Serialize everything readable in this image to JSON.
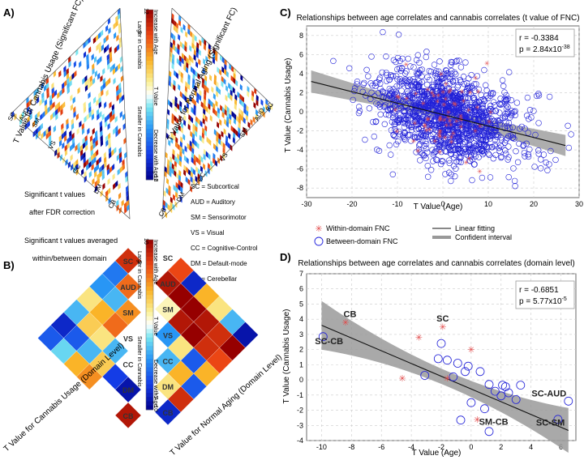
{
  "panels": {
    "a_label": "A)",
    "b_label": "B)",
    "c_label": "C)",
    "d_label": "D)"
  },
  "panel_a": {
    "left_axis_title": "T Value for Cannabis Usage (Significant FC)",
    "right_axis_title": "T Value for Normal Aging (Significant FC)",
    "left_domains": [
      "SC",
      "AUD",
      "SM",
      "VS",
      "CC",
      "DM",
      "CB"
    ],
    "right_domains": [
      "CB",
      "DM",
      "CC",
      "VS",
      "SM",
      "AUD",
      "SC"
    ],
    "note_line1": "Significant t values",
    "note_line2": "after FDR correction",
    "colorbar": {
      "max_label": "12",
      "min_label": "-12",
      "inc_label": "Increase with Age",
      "larger_label": "Larger in Cannabis",
      "mid_label": "T Value",
      "smaller_label": "Smaller in Cannabis",
      "dec_label": "Decrease with Age",
      "six_label": "6",
      "neg_six_label": "-6"
    }
  },
  "legend_domains": [
    "SC = Subcortical",
    "AUD = Auditory",
    "SM = Sensorimotor",
    "VS = Visual",
    "CC = Cognitive-Control",
    "DM = Default-mode",
    "CB = Cerebellar"
  ],
  "panel_b": {
    "note_line1": "Significant t values averaged",
    "note_line2": "within/between domain",
    "left_axis_title": "T Value for Cannabis Usage (Domain Level)",
    "right_axis_title": "T Value for Normal Aging (Domain Level)",
    "domains": [
      "SC",
      "AUD",
      "SM",
      "VS",
      "CC",
      "DM",
      "CB"
    ],
    "colorbar": {
      "max_label": "10",
      "min_label": "-10",
      "inc_label": "Increase with Age",
      "larger_label": "Larger in Cannabis",
      "mid_label": "T Value",
      "smaller_label": "Smaller in Cannabis",
      "dec_label": "Decrease with Age",
      "five_label": "5",
      "neg_five_label": "-5"
    },
    "cannabis_matrix": [
      [
        8,
        -5,
        -4,
        2,
        -3,
        -8,
        -6
      ],
      [
        -5,
        6,
        -3,
        4,
        3,
        -6,
        -2
      ],
      [
        -4,
        -3,
        5,
        6,
        2,
        -3,
        4
      ],
      [
        2,
        4,
        6,
        0,
        -3,
        3,
        5
      ],
      [
        -3,
        3,
        2,
        -3,
        0,
        -7,
        0
      ],
      [
        -8,
        -6,
        -3,
        3,
        -7,
        -9,
        0
      ],
      [
        -6,
        -2,
        4,
        5,
        0,
        0,
        9
      ]
    ],
    "aging_matrix": [
      [
        0,
        7,
        -8,
        4,
        2,
        -3,
        -9
      ],
      [
        7,
        9,
        10,
        10,
        9,
        8,
        10
      ],
      [
        -8,
        10,
        1,
        9,
        10,
        8,
        7
      ],
      [
        4,
        10,
        9,
        -4,
        2,
        -6,
        4
      ],
      [
        2,
        9,
        10,
        2,
        -3,
        4,
        -6
      ],
      [
        -3,
        8,
        8,
        -6,
        4,
        2,
        8
      ],
      [
        -9,
        10,
        7,
        4,
        -6,
        8,
        -8
      ]
    ]
  },
  "legend_c": {
    "within": "Within-domain FNC",
    "between": "Between-domain FNC",
    "linear": "Linear fitting",
    "ci": "Confident interval"
  },
  "chart_data": [
    {
      "type": "scatter",
      "title": "Relationships between age correlates and cannabis correlates (t value of FNC)",
      "xlabel": "T Value (Age)",
      "ylabel": "T Value (Cannabis Usage)",
      "xlim": [
        -30,
        30
      ],
      "ylim": [
        -9,
        9
      ],
      "xticks": [
        -30,
        -20,
        -10,
        0,
        10,
        20,
        30
      ],
      "yticks": [
        -8,
        -6,
        -4,
        -2,
        0,
        2,
        4,
        6,
        8
      ],
      "stats": {
        "r": "r = -0.3384",
        "p": "p = 2.84x10",
        "p_exp": "-38"
      },
      "fit": {
        "slope": -0.12,
        "intercept": -0.3
      },
      "n_between_points": 1400,
      "n_within_points": 70,
      "grid": true
    },
    {
      "type": "scatter",
      "title": "Relationships between age correlates and cannabis correlates (domain level)",
      "xlabel": "T Value (Age)",
      "ylabel": "T Value (Cannabis Usage)",
      "xlim": [
        -11,
        7
      ],
      "ylim": [
        -4,
        7
      ],
      "xticks": [
        -10,
        -8,
        -6,
        -4,
        -2,
        0,
        2,
        4,
        6
      ],
      "yticks": [
        -4,
        -3,
        -2,
        -1,
        0,
        1,
        2,
        3,
        4,
        5,
        6,
        7
      ],
      "stats": {
        "r": "r = -0.6851",
        "p": "p = 5.77x10",
        "p_exp": "-5"
      },
      "fit": {
        "slope": -0.42,
        "intercept": -0.6
      },
      "within_points": [
        {
          "x": -8.4,
          "y": 3.8
        },
        {
          "x": -1.9,
          "y": 3.5
        },
        {
          "x": -3.5,
          "y": 2.8
        },
        {
          "x": -4.6,
          "y": 0.1
        },
        {
          "x": -1.6,
          "y": 0.1
        },
        {
          "x": 0.0,
          "y": 2.0
        },
        {
          "x": 0.4,
          "y": -2.6
        }
      ],
      "between_points": [
        {
          "x": -9.9,
          "y": 2.85
        },
        {
          "x": -2.0,
          "y": 2.4
        },
        {
          "x": -2.2,
          "y": 1.4
        },
        {
          "x": -1.6,
          "y": 1.3
        },
        {
          "x": -0.9,
          "y": 1.1
        },
        {
          "x": -0.2,
          "y": 0.9
        },
        {
          "x": -0.4,
          "y": 0.55
        },
        {
          "x": 0.6,
          "y": 0.55
        },
        {
          "x": -3.1,
          "y": 0.3
        },
        {
          "x": -1.2,
          "y": 0.2
        },
        {
          "x": 1.2,
          "y": -0.3
        },
        {
          "x": 2.1,
          "y": -0.35
        },
        {
          "x": 2.3,
          "y": -0.45
        },
        {
          "x": 3.3,
          "y": -0.35
        },
        {
          "x": 1.6,
          "y": -0.75
        },
        {
          "x": 2.5,
          "y": -0.85
        },
        {
          "x": 2.0,
          "y": -1.05
        },
        {
          "x": 3.0,
          "y": -1.3
        },
        {
          "x": 0.0,
          "y": -1.5
        },
        {
          "x": 0.9,
          "y": -1.9
        },
        {
          "x": -0.7,
          "y": -2.65
        },
        {
          "x": 6.5,
          "y": -1.4
        },
        {
          "x": 5.8,
          "y": -2.6
        },
        {
          "x": 1.2,
          "y": -3.4
        }
      ],
      "annotations": [
        "CB",
        "SC",
        "SC-CB",
        "SC-AUD",
        "SM-CB",
        "SC-SM"
      ],
      "grid": true
    }
  ]
}
